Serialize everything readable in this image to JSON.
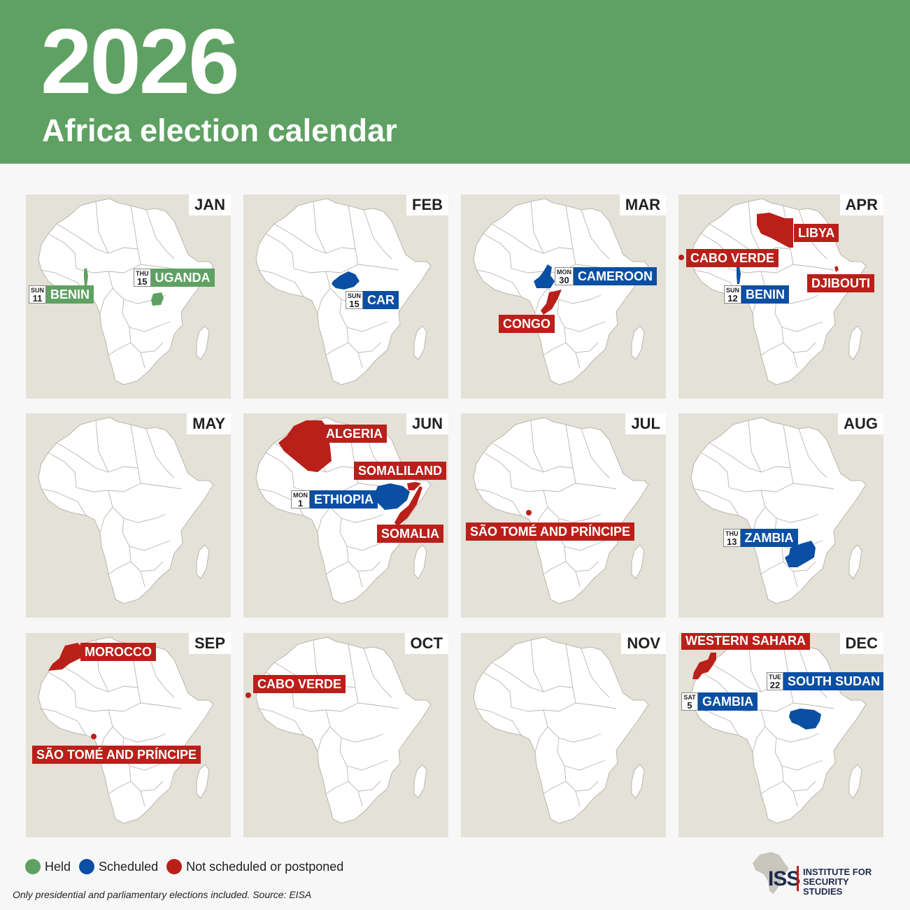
{
  "header": {
    "year": "2026",
    "title": "Africa election calendar"
  },
  "colors": {
    "held": "#5ea162",
    "scheduled": "#0a4fa3",
    "not_scheduled": "#b9201a",
    "panel_bg": "#e4e1d7",
    "land": "#ffffff"
  },
  "months": [
    {
      "label": "JAN",
      "tags": [
        {
          "status": "held",
          "dow": "SUN",
          "day": "11",
          "name": "BENIN"
        },
        {
          "status": "held",
          "dow": "THU",
          "day": "15",
          "name": "UGANDA"
        }
      ]
    },
    {
      "label": "FEB",
      "tags": [
        {
          "status": "scheduled",
          "dow": "SUN",
          "day": "15",
          "name": "CAR"
        }
      ]
    },
    {
      "label": "MAR",
      "tags": [
        {
          "status": "scheduled",
          "dow": "MON",
          "day": "30",
          "name": "CAMEROON"
        },
        {
          "status": "not_scheduled",
          "name": "CONGO"
        }
      ]
    },
    {
      "label": "APR",
      "tags": [
        {
          "status": "not_scheduled",
          "name": "LIBYA"
        },
        {
          "status": "not_scheduled",
          "name": "CABO VERDE"
        },
        {
          "status": "scheduled",
          "dow": "SUN",
          "day": "12",
          "name": "BENIN"
        },
        {
          "status": "not_scheduled",
          "name": "DJIBOUTI"
        }
      ]
    },
    {
      "label": "MAY",
      "tags": []
    },
    {
      "label": "JUN",
      "tags": [
        {
          "status": "not_scheduled",
          "name": "ALGERIA"
        },
        {
          "status": "not_scheduled",
          "name": "SOMALILAND"
        },
        {
          "status": "scheduled",
          "dow": "MON",
          "day": "1",
          "name": "ETHIOPIA"
        },
        {
          "status": "not_scheduled",
          "name": "SOMALIA"
        }
      ]
    },
    {
      "label": "JUL",
      "tags": [
        {
          "status": "not_scheduled",
          "name": "SÃO TOMÉ AND PRÍNCIPE"
        }
      ]
    },
    {
      "label": "AUG",
      "tags": [
        {
          "status": "scheduled",
          "dow": "THU",
          "day": "13",
          "name": "ZAMBIA"
        }
      ]
    },
    {
      "label": "SEP",
      "tags": [
        {
          "status": "not_scheduled",
          "name": "MOROCCO"
        },
        {
          "status": "not_scheduled",
          "name": "SÃO TOMÉ AND PRÍNCIPE"
        }
      ]
    },
    {
      "label": "OCT",
      "tags": [
        {
          "status": "not_scheduled",
          "name": "CABO VERDE"
        }
      ]
    },
    {
      "label": "NOV",
      "tags": []
    },
    {
      "label": "DEC",
      "tags": [
        {
          "status": "not_scheduled",
          "name": "WESTERN SAHARA"
        },
        {
          "status": "scheduled",
          "dow": "TUE",
          "day": "22",
          "name": "SOUTH SUDAN"
        },
        {
          "status": "scheduled",
          "dow": "SAT",
          "day": "5",
          "name": "GAMBIA"
        }
      ]
    }
  ],
  "legend": {
    "held": "Held",
    "scheduled": "Scheduled",
    "not_scheduled": "Not scheduled or postponed"
  },
  "footnote": "Only presidential and parliamentary elections included. Source: EISA",
  "logo": {
    "abbr": "ISS",
    "line1": "INSTITUTE FOR",
    "line2": "SECURITY STUDIES"
  }
}
